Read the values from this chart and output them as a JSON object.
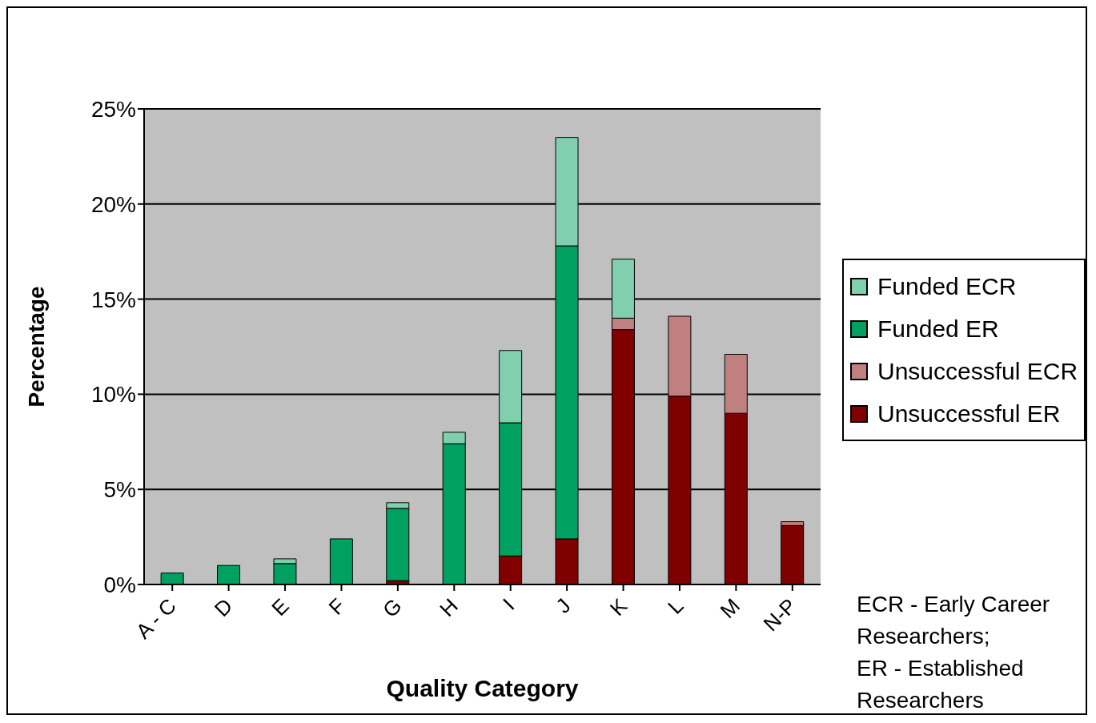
{
  "chart_data": {
    "type": "bar",
    "stacked": true,
    "xlabel": "Quality Category",
    "ylabel": "Percentage",
    "categories": [
      "A - C",
      "D",
      "E",
      "F",
      "G",
      "H",
      "I",
      "J",
      "K",
      "L",
      "M",
      "N-P"
    ],
    "series": [
      {
        "name": "Unsuccessful ER",
        "color": "#800000",
        "values": [
          0,
          0,
          0,
          0,
          0.2,
          0,
          1.5,
          2.4,
          13.4,
          9.9,
          9.0,
          3.1
        ]
      },
      {
        "name": "Unsuccessful ECR",
        "color": "#c08080",
        "values": [
          0,
          0,
          0,
          0,
          0,
          0,
          0,
          0,
          0.6,
          4.2,
          3.1,
          0.2
        ]
      },
      {
        "name": "Funded ER",
        "color": "#00a060",
        "values": [
          0.6,
          1.0,
          1.1,
          2.4,
          3.8,
          7.4,
          7.0,
          15.4,
          0,
          0,
          0,
          0
        ]
      },
      {
        "name": "Funded ECR",
        "color": "#80d0b0",
        "values": [
          0,
          0,
          0.25,
          0,
          0.3,
          0.6,
          3.8,
          5.7,
          3.1,
          0,
          0,
          0
        ]
      }
    ],
    "ylim": [
      0,
      25
    ],
    "yticks": [
      {
        "value": 0,
        "label": "0%"
      },
      {
        "value": 5,
        "label": "5%"
      },
      {
        "value": 10,
        "label": "10%"
      },
      {
        "value": 15,
        "label": "15%"
      },
      {
        "value": 20,
        "label": "20%"
      },
      {
        "value": 25,
        "label": "25%"
      }
    ],
    "grid": "y",
    "legend": "right",
    "annotations": [
      "ECR - Early Career Researchers;\nER - Established Researchers"
    ]
  }
}
